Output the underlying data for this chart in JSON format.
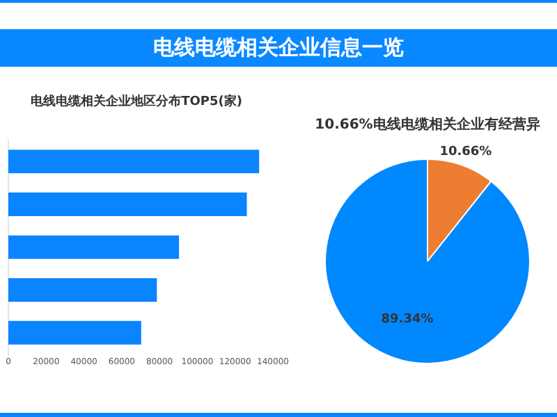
{
  "chart_data": [
    {
      "type": "bar",
      "title": "电线电缆相关企业信息一览",
      "subtitle": "电线电缆相关企业地区分布TOP5(家)",
      "orientation": "horizontal",
      "categories": [
        null,
        null,
        null,
        null,
        null
      ],
      "values": [
        132700,
        126200,
        90300,
        78600,
        70300
      ],
      "color": "#0a84ff",
      "xlim": [
        0,
        140000
      ],
      "xticks": [
        0,
        20000,
        40000,
        60000,
        80000,
        100000,
        120000,
        140000
      ],
      "grid": false,
      "tick_labels": "x"
    },
    {
      "type": "pie",
      "title": "10.66%电线电缆相关企业有经营异",
      "categories": [
        null,
        null
      ],
      "values": [
        10.66,
        89.34
      ],
      "colors": [
        "#ed7d31",
        "#0088ff"
      ],
      "value_labels": [
        "10.66%",
        "89.34%"
      ]
    }
  ]
}
